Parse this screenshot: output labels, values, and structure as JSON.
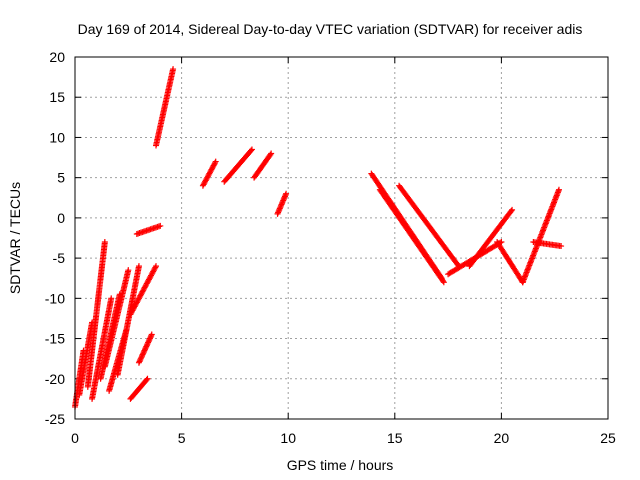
{
  "chart_data": {
    "type": "scatter",
    "title": "Day 169 of 2014, Sidereal Day-to-day VTEC variation (SDTVAR) for receiver adis",
    "xlabel": "GPS time / hours",
    "ylabel": "SDTVAR / TECUs",
    "xlim": [
      0,
      25
    ],
    "ylim": [
      -25,
      20
    ],
    "xticks": [
      0,
      5,
      10,
      15,
      20,
      25
    ],
    "yticks": [
      -25,
      -20,
      -15,
      -10,
      -5,
      0,
      5,
      10,
      15,
      20
    ],
    "xtick_labels": [
      "0",
      "5",
      "10",
      "15",
      "20",
      "25"
    ],
    "ytick_labels": [
      "-25",
      "-20",
      "-15",
      "-10",
      "-5",
      "0",
      "5",
      "10",
      "15",
      "20"
    ],
    "grid": true,
    "marker": "+",
    "series_color": "#ff0000",
    "series": [
      {
        "name": "SDTVAR",
        "x_start": 0.0,
        "x_end": 0.4,
        "y_start": -23.5,
        "y_end": -16.5
      },
      {
        "name": "SDTVAR",
        "x_start": 0.2,
        "x_end": 0.8,
        "y_start": -22.0,
        "y_end": -13.0
      },
      {
        "name": "SDTVAR",
        "x_start": 0.6,
        "x_end": 1.4,
        "y_start": -21.0,
        "y_end": -3.0
      },
      {
        "name": "SDTVAR",
        "x_start": 0.8,
        "x_end": 1.7,
        "y_start": -22.5,
        "y_end": -10.0
      },
      {
        "name": "SDTVAR",
        "x_start": 1.2,
        "x_end": 2.1,
        "y_start": -20.0,
        "y_end": -9.5
      },
      {
        "name": "SDTVAR",
        "x_start": 1.4,
        "x_end": 2.5,
        "y_start": -18.5,
        "y_end": -6.5
      },
      {
        "name": "SDTVAR",
        "x_start": 1.6,
        "x_end": 2.4,
        "y_start": -21.5,
        "y_end": -14.0
      },
      {
        "name": "SDTVAR",
        "x_start": 2.0,
        "x_end": 3.0,
        "y_start": -19.5,
        "y_end": -6.0
      },
      {
        "name": "SDTVAR",
        "x_start": 2.6,
        "x_end": 3.4,
        "y_start": -22.5,
        "y_end": -20.0
      },
      {
        "name": "SDTVAR",
        "x_start": 2.6,
        "x_end": 3.8,
        "y_start": -12.0,
        "y_end": -6.0
      },
      {
        "name": "SDTVAR",
        "x_start": 3.0,
        "x_end": 3.6,
        "y_start": -18.0,
        "y_end": -14.5
      },
      {
        "name": "SDTVAR",
        "x_start": 2.9,
        "x_end": 4.0,
        "y_start": -2.0,
        "y_end": -1.0
      },
      {
        "name": "SDTVAR",
        "x_start": 3.8,
        "x_end": 4.6,
        "y_start": 9.0,
        "y_end": 18.5
      },
      {
        "name": "SDTVAR",
        "x_start": 6.0,
        "x_end": 6.6,
        "y_start": 4.0,
        "y_end": 7.0
      },
      {
        "name": "SDTVAR",
        "x_start": 7.0,
        "x_end": 8.3,
        "y_start": 4.5,
        "y_end": 8.5
      },
      {
        "name": "SDTVAR",
        "x_start": 8.4,
        "x_end": 9.2,
        "y_start": 5.0,
        "y_end": 8.0
      },
      {
        "name": "SDTVAR",
        "x_start": 9.5,
        "x_end": 9.9,
        "y_start": 0.5,
        "y_end": 3.0
      },
      {
        "name": "SDTVAR",
        "x_start": 13.9,
        "x_end": 17.2,
        "y_start": 5.5,
        "y_end": -7.5
      },
      {
        "name": "SDTVAR",
        "x_start": 14.3,
        "x_end": 17.3,
        "y_start": 3.5,
        "y_end": -8.0
      },
      {
        "name": "SDTVAR",
        "x_start": 15.2,
        "x_end": 18.0,
        "y_start": 4.0,
        "y_end": -6.0
      },
      {
        "name": "SDTVAR",
        "x_start": 17.5,
        "x_end": 20.0,
        "y_start": -7.0,
        "y_end": -3.0
      },
      {
        "name": "SDTVAR",
        "x_start": 18.5,
        "x_end": 20.5,
        "y_start": -6.0,
        "y_end": 1.0
      },
      {
        "name": "SDTVAR",
        "x_start": 19.8,
        "x_end": 21.0,
        "y_start": -3.0,
        "y_end": -8.0
      },
      {
        "name": "SDTVAR",
        "x_start": 21.0,
        "x_end": 22.7,
        "y_start": -8.0,
        "y_end": 3.5
      },
      {
        "name": "SDTVAR",
        "x_start": 21.5,
        "x_end": 22.8,
        "y_start": -3.0,
        "y_end": -3.5
      }
    ]
  }
}
